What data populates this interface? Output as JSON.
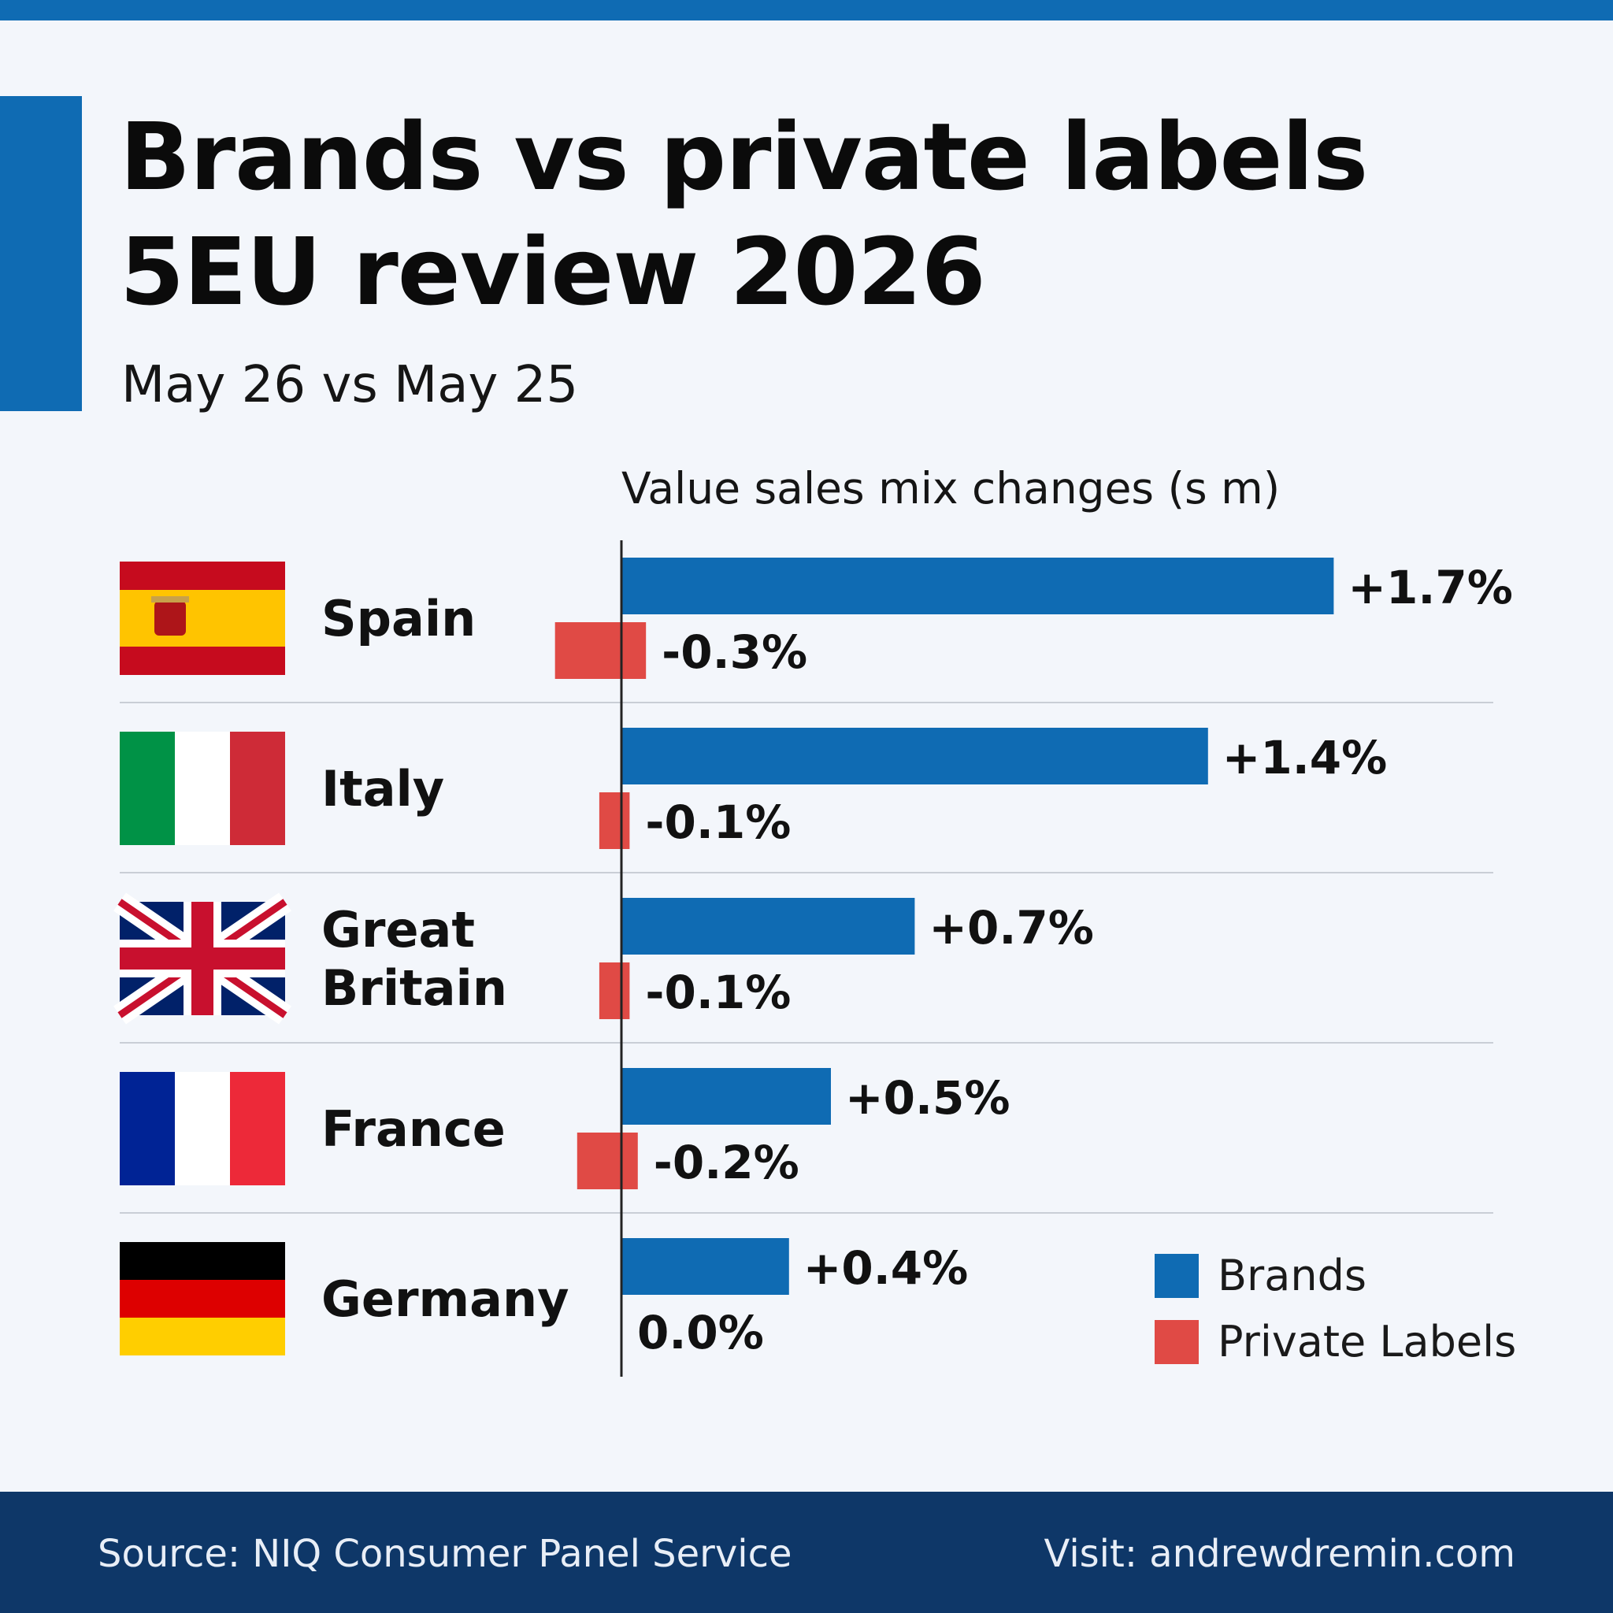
{
  "header": {
    "title": "Brands vs private labels\n5EU review 2026",
    "subtitle": "May 26 vs May 25"
  },
  "footer": {
    "source": "Source: NIQ Consumer Panel Service",
    "visit": "Visit: andrewdremin.com"
  },
  "colors": {
    "accent": "#0f6bb3",
    "brands": "#0f6bb3",
    "private_labels": "#e04a45",
    "footer_bg": "#0e3768"
  },
  "chart_data": {
    "type": "bar",
    "orientation": "horizontal",
    "title": "Value sales mix changes (s m)",
    "categories": [
      "Spain",
      "Italy",
      "Great\nBritain",
      "France",
      "Germany"
    ],
    "flags": [
      "spain-flag",
      "italy-flag",
      "uk-flag",
      "france-flag",
      "germany-flag"
    ],
    "series": [
      {
        "name": "Brands",
        "values": [
          1.7,
          1.4,
          0.7,
          0.5,
          0.4
        ],
        "labels": [
          "+1.7%",
          "+1.4%",
          "+0.7%",
          "+0.5%",
          "+0.4%"
        ],
        "color": "#0f6bb3"
      },
      {
        "name": "Private Labels",
        "values": [
          -0.3,
          -0.1,
          -0.1,
          -0.2,
          0.0
        ],
        "labels": [
          "-0.3%",
          "-0.1%",
          "-0.1%",
          "-0.2%",
          "0.0%"
        ],
        "color": "#e04a45"
      }
    ],
    "xlim": [
      -0.2,
      2.0
    ],
    "legend": "bottom-right",
    "grid": false
  }
}
